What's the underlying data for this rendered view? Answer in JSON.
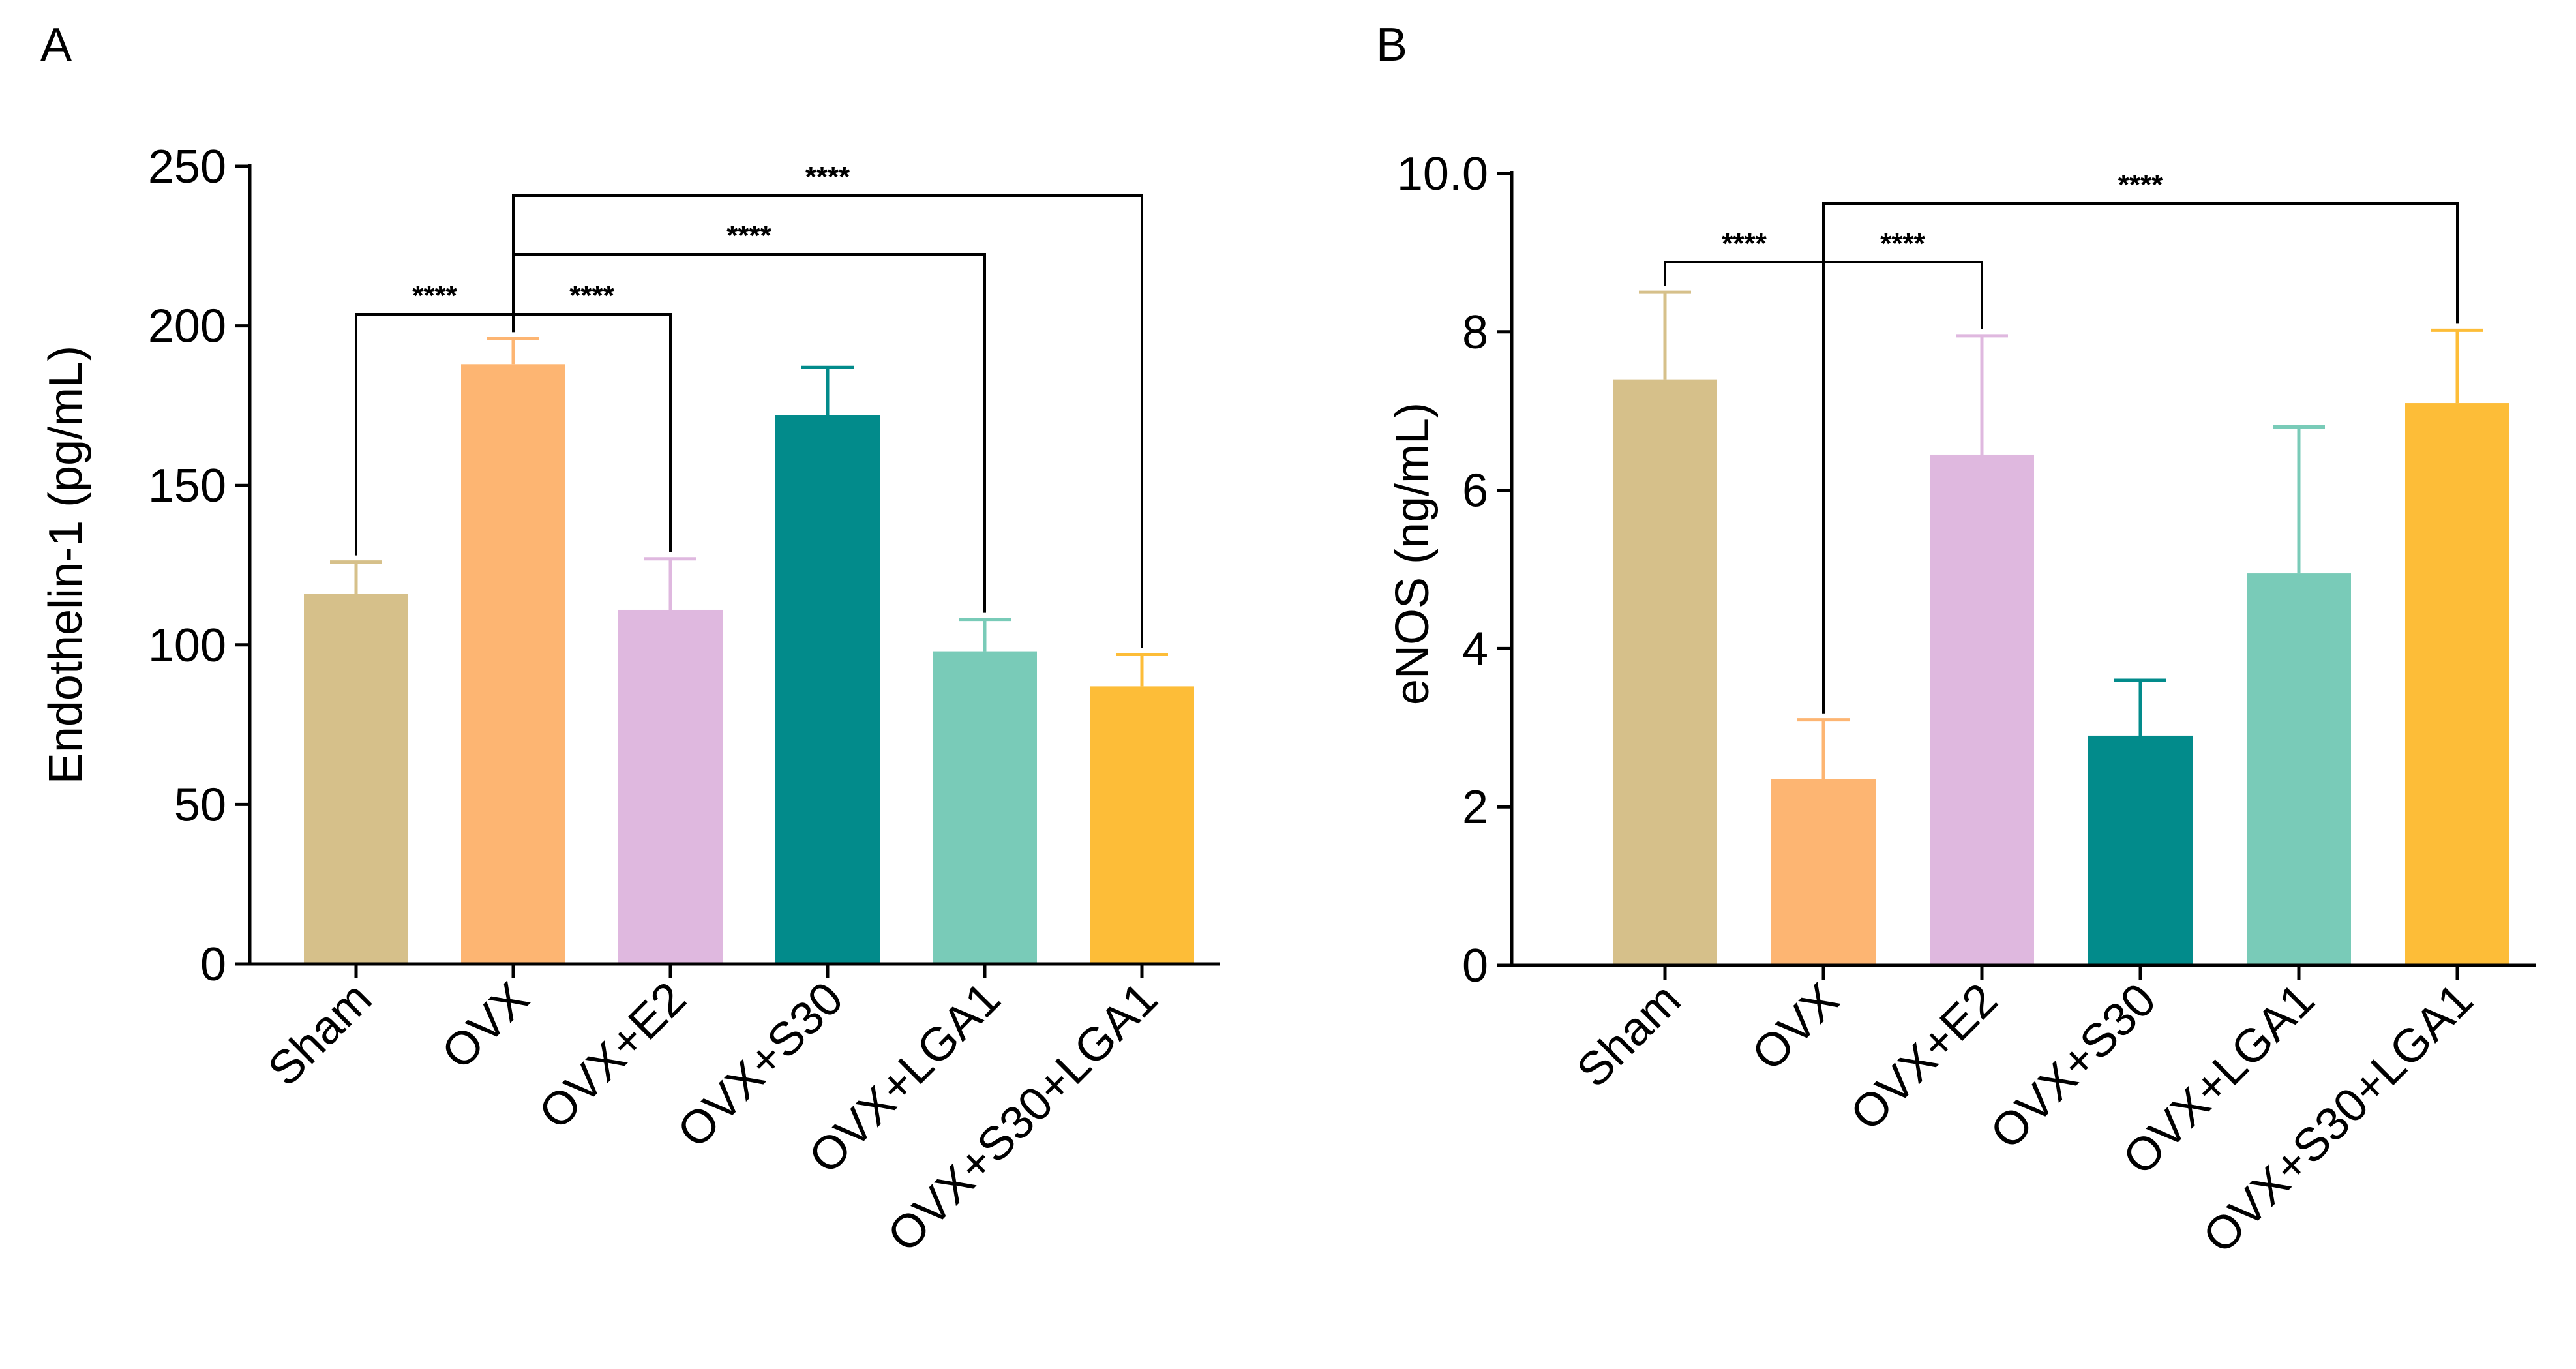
{
  "chart_data": [
    {
      "type": "bar",
      "panel": "A",
      "title": "",
      "ylabel": "Endothelin-1 (pg/mL)",
      "xlabel": "",
      "ylim": [
        0,
        250
      ],
      "yticks": [
        0,
        50,
        100,
        150,
        200,
        250
      ],
      "categories": [
        "Sham",
        "OVX",
        "OVX+E2",
        "OVX+S30",
        "OVX+LGA1",
        "OVX+S30+LGA1"
      ],
      "values": [
        116,
        188,
        111,
        172,
        98,
        87
      ],
      "errors": [
        10,
        8,
        16,
        15,
        10,
        10
      ],
      "colors": [
        "#d6c08a",
        "#fdb572",
        "#dfb8df",
        "#028b8b",
        "#79cbb8",
        "#fdbd38"
      ],
      "significance": [
        {
          "from": 0,
          "to": 1,
          "label": "****"
        },
        {
          "from": 1,
          "to": 2,
          "label": "****"
        },
        {
          "from": 1,
          "to": 4,
          "label": "****"
        },
        {
          "from": 1,
          "to": 5,
          "label": "****"
        }
      ]
    },
    {
      "type": "bar",
      "panel": "B",
      "title": "",
      "ylabel": "eNOS (ng/mL)",
      "xlabel": "",
      "ylim": [
        0,
        10
      ],
      "yticks": [
        0,
        2,
        4,
        6,
        8,
        10
      ],
      "ytick_labels": [
        "0",
        "2",
        "4",
        "6",
        "8",
        "10.0"
      ],
      "categories": [
        "Sham",
        "OVX",
        "OVX+E2",
        "OVX+S30",
        "OVX+LGA1",
        "OVX+S30+LGA1"
      ],
      "values": [
        7.4,
        2.35,
        6.45,
        2.9,
        4.95,
        7.1
      ],
      "errors": [
        1.1,
        0.75,
        1.5,
        0.7,
        1.85,
        0.92
      ],
      "colors": [
        "#d6c08a",
        "#fdb572",
        "#dfb8df",
        "#028b8b",
        "#79cbb8",
        "#fdbd38"
      ],
      "significance": [
        {
          "from": 0,
          "to": 1,
          "label": "****"
        },
        {
          "from": 1,
          "to": 2,
          "label": "****"
        },
        {
          "from": 1,
          "to": 5,
          "label": "****"
        }
      ]
    }
  ]
}
